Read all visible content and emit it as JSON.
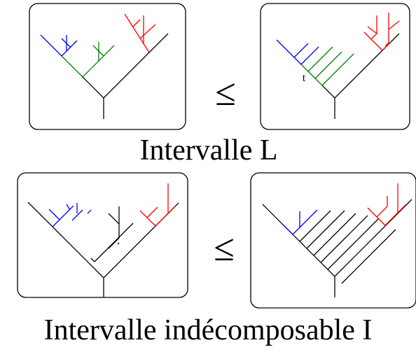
{
  "top": {
    "relation": "≤",
    "label": "t",
    "caption": "Intervalle L"
  },
  "bottom": {
    "relation": "≤",
    "caption": "Intervalle indécomposable I"
  }
}
